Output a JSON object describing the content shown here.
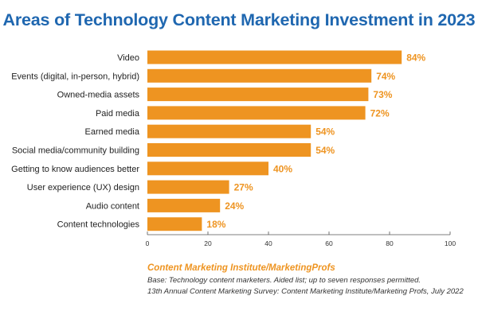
{
  "chart_data": {
    "type": "bar",
    "orientation": "horizontal",
    "title": "Areas of Technology Content Marketing Investment in 2023",
    "categories": [
      "Video",
      "Events (digital, in-person, hybrid)",
      "Owned-media assets",
      "Paid media",
      "Earned media",
      "Social media/community building",
      "Getting to know audiences better",
      "User experience (UX) design",
      "Audio content",
      "Content technologies"
    ],
    "values": [
      84,
      74,
      73,
      72,
      54,
      54,
      40,
      27,
      24,
      18
    ],
    "value_labels": [
      "84%",
      "74%",
      "73%",
      "72%",
      "54%",
      "54%",
      "40%",
      "27%",
      "24%",
      "18%"
    ],
    "xlim": [
      0,
      100
    ],
    "x_ticks": [
      0,
      20,
      40,
      60,
      80,
      100
    ],
    "grid": false,
    "bar_color": "#ee9421",
    "title_color": "#1f67b0",
    "xlabel": "",
    "ylabel": ""
  },
  "footer": {
    "source": "Content Marketing Institute/MarketingProfs",
    "base_note": "Base: Technology content marketers. Aided list; up to seven responses permitted.",
    "survey_note": "13th Annual Content Marketing Survey: Content Marketing Institute/Marketing Profs, July 2022"
  }
}
